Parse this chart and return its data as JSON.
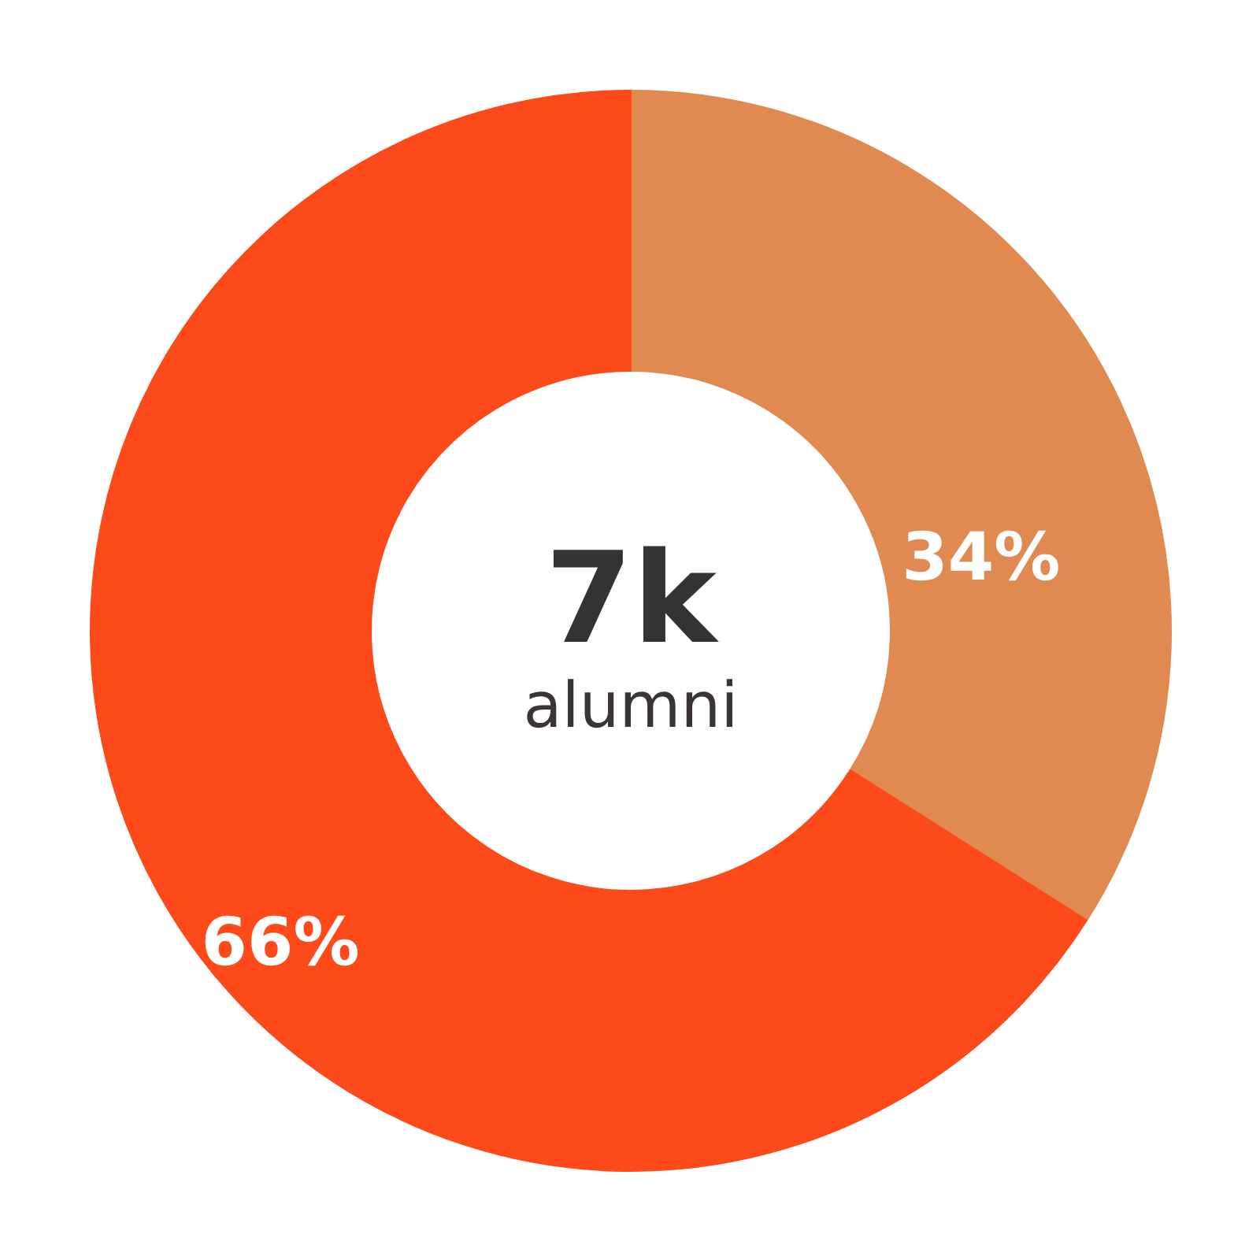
{
  "chart_data": {
    "type": "donut",
    "categories": [
      null,
      null
    ],
    "values": [
      34,
      66
    ],
    "colors": [
      "#e08a52",
      "#fc4a1a"
    ],
    "value_labels": [
      "34%",
      "66%"
    ],
    "annotations": [
      "7k",
      "alumni"
    ]
  }
}
